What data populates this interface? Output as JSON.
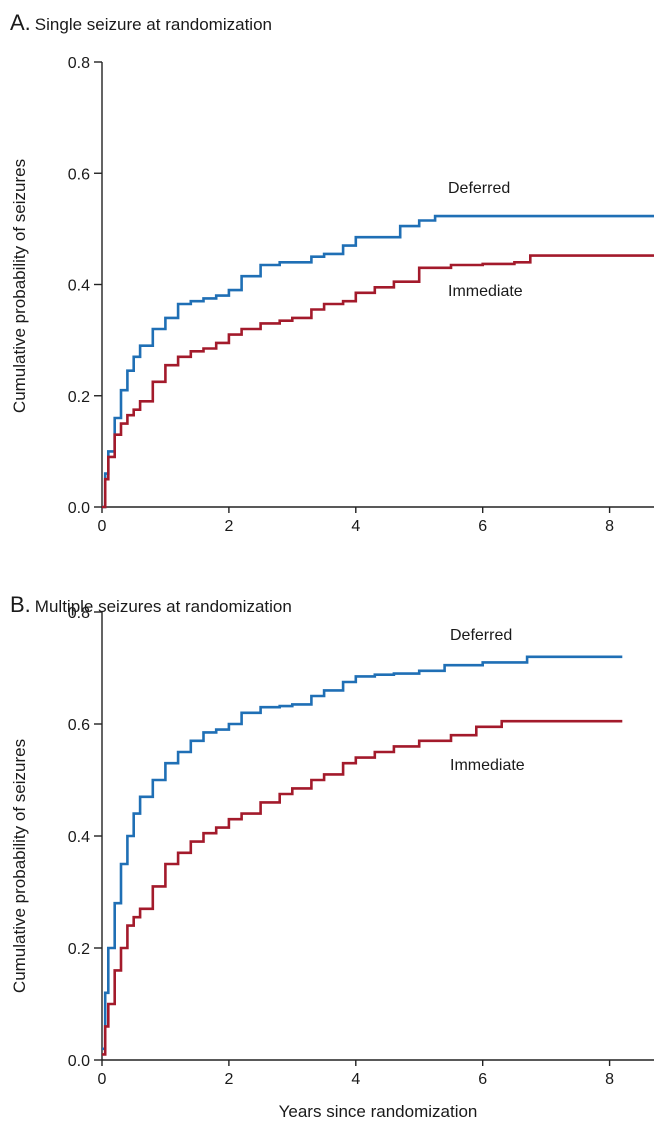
{
  "chart_data": [
    {
      "type": "line",
      "panel": "A.",
      "title": "Single seizure at randomization",
      "xlabel": "",
      "ylabel": "Cumulative probability of seizures",
      "xlim": [
        0,
        8.7
      ],
      "ylim": [
        0,
        0.8
      ],
      "xticks": [
        "0",
        "2",
        "4",
        "6",
        "8"
      ],
      "yticks": [
        "0.0",
        "0.2",
        "0.4",
        "0.6",
        "0.8"
      ],
      "grid": false,
      "series": [
        {
          "name": "Deferred",
          "color": "#1f6fb5",
          "x": [
            0,
            0.05,
            0.1,
            0.2,
            0.3,
            0.4,
            0.5,
            0.6,
            0.8,
            1.0,
            1.2,
            1.4,
            1.6,
            1.8,
            2.0,
            2.2,
            2.5,
            2.8,
            3.0,
            3.3,
            3.5,
            3.8,
            4.0,
            4.3,
            4.6,
            4.7,
            5.0,
            5.25,
            6.0,
            7.0,
            8.0,
            8.7
          ],
          "values": [
            0.0,
            0.06,
            0.1,
            0.16,
            0.21,
            0.245,
            0.27,
            0.29,
            0.32,
            0.34,
            0.365,
            0.37,
            0.375,
            0.38,
            0.39,
            0.415,
            0.435,
            0.44,
            0.44,
            0.45,
            0.455,
            0.47,
            0.485,
            0.485,
            0.485,
            0.505,
            0.515,
            0.523,
            0.523,
            0.523,
            0.523,
            0.523
          ]
        },
        {
          "name": "Immediate",
          "color": "#a31a2b",
          "x": [
            0,
            0.05,
            0.1,
            0.2,
            0.3,
            0.4,
            0.5,
            0.6,
            0.8,
            1.0,
            1.2,
            1.4,
            1.6,
            1.8,
            2.0,
            2.2,
            2.5,
            2.8,
            3.0,
            3.3,
            3.5,
            3.8,
            4.0,
            4.3,
            4.6,
            5.0,
            5.5,
            6.0,
            6.5,
            6.75,
            7.5,
            8.7
          ],
          "values": [
            0.0,
            0.05,
            0.09,
            0.13,
            0.15,
            0.165,
            0.175,
            0.19,
            0.225,
            0.255,
            0.27,
            0.28,
            0.285,
            0.295,
            0.31,
            0.32,
            0.33,
            0.335,
            0.34,
            0.355,
            0.365,
            0.37,
            0.385,
            0.395,
            0.405,
            0.43,
            0.435,
            0.437,
            0.44,
            0.452,
            0.452,
            0.452
          ]
        }
      ],
      "annotations": [
        "Deferred",
        "Immediate"
      ]
    },
    {
      "type": "line",
      "panel": "B.",
      "title": "Multiple seizures at randomization",
      "xlabel": "Years since randomization",
      "ylabel": "Cumulative probability of seizures",
      "xlim": [
        0,
        8.7
      ],
      "ylim": [
        0,
        0.8
      ],
      "xticks": [
        "0",
        "2",
        "4",
        "6",
        "8"
      ],
      "yticks": [
        "0.0",
        "0.2",
        "0.4",
        "0.6",
        "0.8"
      ],
      "grid": false,
      "series": [
        {
          "name": "Deferred",
          "color": "#1f6fb5",
          "x": [
            0,
            0.05,
            0.1,
            0.2,
            0.3,
            0.4,
            0.5,
            0.6,
            0.8,
            1.0,
            1.2,
            1.4,
            1.6,
            1.8,
            2.0,
            2.2,
            2.5,
            2.8,
            3.0,
            3.3,
            3.5,
            3.8,
            4.0,
            4.3,
            4.6,
            5.0,
            5.4,
            6.0,
            6.7,
            7.5,
            8.2
          ],
          "values": [
            0.02,
            0.12,
            0.2,
            0.28,
            0.35,
            0.4,
            0.44,
            0.47,
            0.5,
            0.53,
            0.55,
            0.57,
            0.585,
            0.59,
            0.6,
            0.62,
            0.63,
            0.632,
            0.635,
            0.65,
            0.66,
            0.675,
            0.685,
            0.688,
            0.69,
            0.695,
            0.705,
            0.71,
            0.72,
            0.72,
            0.72
          ]
        },
        {
          "name": "Immediate",
          "color": "#a31a2b",
          "x": [
            0,
            0.05,
            0.1,
            0.2,
            0.3,
            0.4,
            0.5,
            0.6,
            0.8,
            1.0,
            1.2,
            1.4,
            1.6,
            1.8,
            2.0,
            2.2,
            2.5,
            2.8,
            3.0,
            3.3,
            3.5,
            3.8,
            4.0,
            4.3,
            4.6,
            5.0,
            5.5,
            5.9,
            6.3,
            7.0,
            8.2
          ],
          "values": [
            0.01,
            0.06,
            0.1,
            0.16,
            0.2,
            0.24,
            0.255,
            0.27,
            0.31,
            0.35,
            0.37,
            0.39,
            0.405,
            0.415,
            0.43,
            0.44,
            0.46,
            0.475,
            0.485,
            0.5,
            0.51,
            0.53,
            0.54,
            0.55,
            0.56,
            0.57,
            0.58,
            0.595,
            0.605,
            0.605,
            0.605
          ]
        }
      ],
      "annotations": [
        "Deferred",
        "Immediate"
      ]
    }
  ]
}
